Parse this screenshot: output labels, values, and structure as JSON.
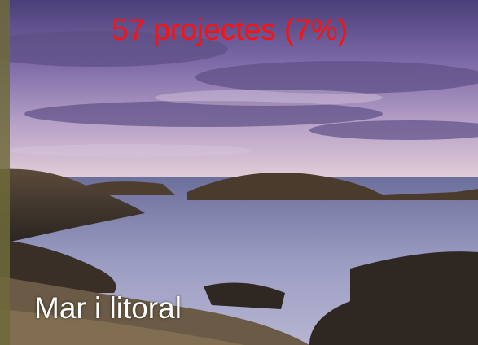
{
  "overlay": {
    "stat": "57 projectes (7%)",
    "label": "Mar i litoral"
  }
}
